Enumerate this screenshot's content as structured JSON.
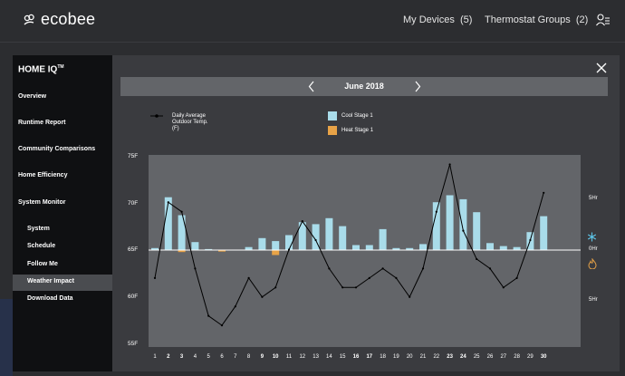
{
  "header": {
    "brand": "ecobee",
    "nav": [
      {
        "label": "My Devices",
        "count": "(5)"
      },
      {
        "label": "Thermostat Groups",
        "count": "(2)"
      }
    ]
  },
  "sidebar": {
    "title": "HOME IQ",
    "title_tm": "TM",
    "items": [
      "Overview",
      "Runtime Report",
      "Community Comparisons",
      "Home Efficiency",
      "System Monitor"
    ],
    "subitems": [
      "System",
      "Schedule",
      "Follow Me",
      "Weather Impact",
      "Download Data"
    ],
    "active": "Weather Impact"
  },
  "month_nav": {
    "label": "June 2018"
  },
  "legend": {
    "line_label_1": "Daily Average",
    "line_label_2": "Outdoor Temp.",
    "line_label_3": "(F)",
    "cool_label": "Cool Stage 1",
    "heat_label": "Heat Stage 1"
  },
  "colors": {
    "cool": "#a9dcea",
    "heat": "#e8a347",
    "plot_bg": "#636569",
    "panel": "#3a3b3f"
  },
  "chart_data": {
    "type": "bar",
    "x": [
      1,
      2,
      3,
      4,
      5,
      6,
      7,
      8,
      9,
      10,
      11,
      12,
      13,
      14,
      15,
      16,
      17,
      18,
      19,
      20,
      21,
      22,
      23,
      24,
      25,
      26,
      27,
      28,
      29,
      30
    ],
    "x_labels": [
      "1",
      "2",
      "3",
      "4",
      "5",
      "6",
      "7",
      "8",
      "9",
      "10",
      "11",
      "12",
      "13",
      "14",
      "15",
      "16",
      "17",
      "18",
      "19",
      "20",
      "21",
      "22",
      "23",
      "24",
      "25",
      "26",
      "27",
      "28",
      "29",
      "30"
    ],
    "bold_days": [
      2,
      3,
      9,
      10,
      16,
      17,
      23,
      24,
      30
    ],
    "y_ticks": [
      "75F",
      "70F",
      "65F",
      "60F",
      "55F"
    ],
    "ylim": [
      55,
      75
    ],
    "right_axis_labels": [
      "5Hr",
      "0Hr",
      "5Hr"
    ],
    "series": [
      {
        "name": "Cool Stage 1",
        "values_hr": [
          0.2,
          5.3,
          3.5,
          0.8,
          0.1,
          0,
          0,
          0.3,
          1.2,
          0.9,
          1.5,
          2.8,
          2.6,
          3.2,
          2.4,
          0.5,
          0.5,
          2.1,
          0.2,
          0.2,
          0.6,
          4.8,
          5.5,
          5.1,
          3.8,
          0.7,
          0.4,
          0.3,
          1.8,
          3.4
        ]
      },
      {
        "name": "Heat Stage 1",
        "values_hr": [
          0,
          0,
          0.2,
          0,
          0,
          0.15,
          0,
          0,
          0,
          0.5,
          0,
          0,
          0,
          0,
          0,
          0,
          0,
          0,
          0,
          0,
          0,
          0,
          0,
          0,
          0,
          0,
          0,
          0,
          0,
          0
        ]
      },
      {
        "name": "Daily Average Outdoor Temp. (F)",
        "values_f": [
          62,
          70,
          69,
          63,
          58,
          57,
          59,
          62,
          60,
          61,
          65,
          68,
          66,
          63,
          61,
          61,
          62,
          63,
          62,
          60,
          63,
          69,
          74,
          67,
          64,
          63,
          61,
          62,
          66,
          71
        ]
      }
    ]
  }
}
